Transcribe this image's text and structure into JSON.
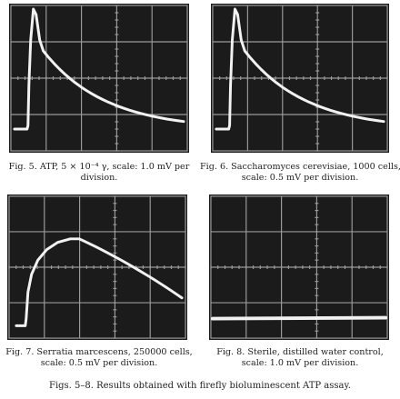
{
  "figures": [
    {
      "id": "fig5",
      "caption_lines": [
        "Fig. 5. ATP, 5 × 10⁻⁴ γ, scale: 1.0 mV per",
        "division."
      ],
      "trace_type": "sharp-peak-decay",
      "trace_color": "#f2f2f2"
    },
    {
      "id": "fig6",
      "caption_lines": [
        "Fig. 6. Saccharomyces cerevisiae, 1000 cells,",
        "scale: 0.5 mV per division."
      ],
      "trace_type": "sharp-peak-decay",
      "trace_color": "#f2f2f2"
    },
    {
      "id": "fig7",
      "caption_lines": [
        "Fig. 7. Serratia marcescens, 250000 cells,",
        "scale: 0.5 mV per division."
      ],
      "trace_type": "broad-rise-decay",
      "trace_color": "#f2f2f2"
    },
    {
      "id": "fig8",
      "caption_lines": [
        "Fig. 8. Sterile, distilled water control,",
        "scale: 1.0 mV per division."
      ],
      "trace_type": "flat-baseline",
      "trace_color": "#f2f2f2"
    }
  ],
  "overall_caption": "Figs. 5–8. Results obtained with firefly bioluminescent ATP assay.",
  "colors": {
    "screen": "#1b1b1b",
    "grid": "#9a9a9a",
    "trace": "#f2f2f2"
  }
}
